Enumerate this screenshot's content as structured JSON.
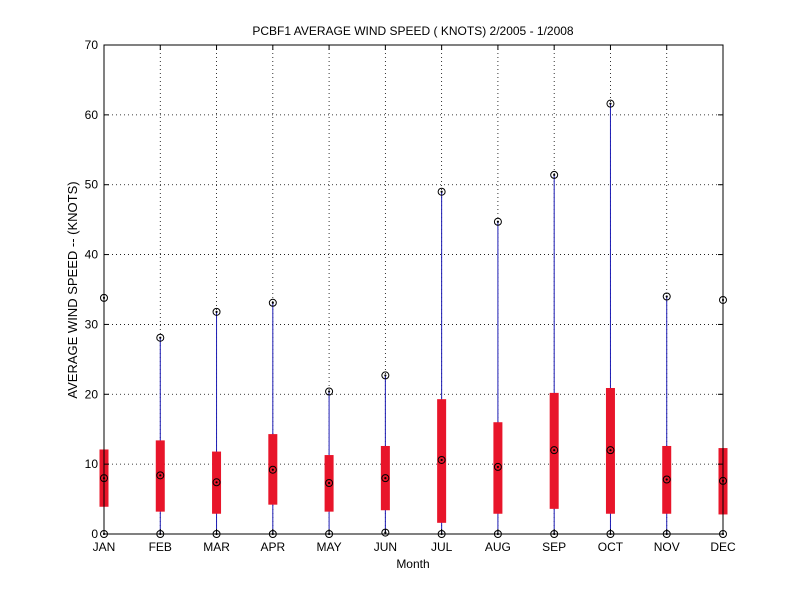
{
  "chart_data": {
    "type": "box",
    "title": "PCBF1  AVERAGE WIND SPEED ( KNOTS) 2/2005 - 1/2008",
    "xlabel": "Month",
    "ylabel": "AVERAGE WIND SPEED -- (KNOTS)",
    "ylim": [
      0,
      70
    ],
    "yticks": [
      0,
      10,
      20,
      30,
      40,
      50,
      60,
      70
    ],
    "grid": true,
    "categories": [
      "JAN",
      "FEB",
      "MAR",
      "APR",
      "MAY",
      "JUN",
      "JUL",
      "AUG",
      "SEP",
      "OCT",
      "NOV",
      "DEC"
    ],
    "series": [
      {
        "min": [
          0,
          0,
          0,
          0,
          0,
          0.2,
          0,
          0,
          0,
          0,
          0,
          0
        ],
        "q1": [
          3.9,
          3.2,
          2.9,
          4.2,
          3.2,
          3.4,
          1.6,
          2.9,
          3.6,
          2.9,
          2.9,
          2.8
        ],
        "median": [
          8,
          8.4,
          7.4,
          9.2,
          7.3,
          8,
          10.6,
          9.6,
          12,
          12,
          7.8,
          7.6
        ],
        "q3": [
          12.1,
          13.4,
          11.8,
          14.3,
          11.3,
          12.6,
          19.3,
          16,
          20.2,
          20.9,
          12.6,
          12.3
        ],
        "max": [
          33.8,
          28.1,
          31.8,
          33.1,
          20.4,
          22.7,
          49,
          44.7,
          51.4,
          61.6,
          34,
          33.5
        ]
      }
    ],
    "colors": {
      "box": "#e8152a",
      "whisker": "#1c1cb4",
      "marker": "#000000"
    }
  }
}
